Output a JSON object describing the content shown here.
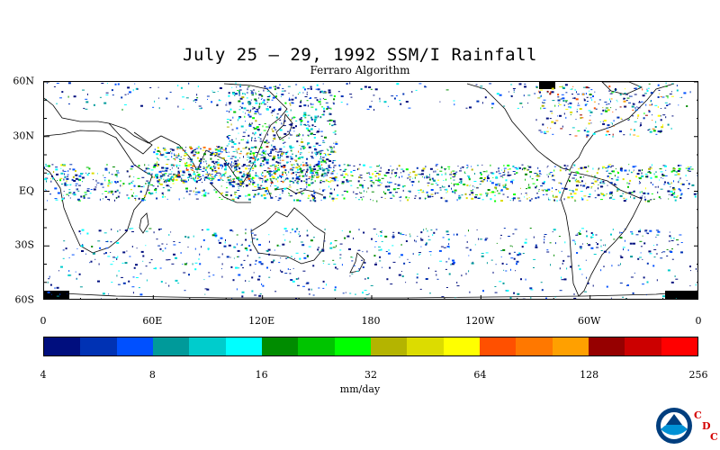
{
  "title": "July 25 – 29, 1992 SSM/I Rainfall",
  "subtitle": "Ferraro Algorithm",
  "map": {
    "lat_labels": [
      {
        "text": "60N",
        "lat": 60
      },
      {
        "text": "30N",
        "lat": 30
      },
      {
        "text": "EQ",
        "lat": 0
      },
      {
        "text": "30S",
        "lat": -30
      },
      {
        "text": "60S",
        "lat": -60
      }
    ],
    "lon_labels": [
      {
        "text": "0",
        "lon": 0
      },
      {
        "text": "60E",
        "lon": 60
      },
      {
        "text": "120E",
        "lon": 120
      },
      {
        "text": "180",
        "lon": 180
      },
      {
        "text": "120W",
        "lon": 240
      },
      {
        "text": "60W",
        "lon": 300
      },
      {
        "text": "0",
        "lon": 360
      }
    ],
    "lon_range": [
      0,
      360
    ],
    "lat_range": [
      -60,
      60
    ]
  },
  "colorbar": {
    "colors": [
      "#000e7e",
      "#0032b4",
      "#0050ff",
      "#009a9a",
      "#00cccc",
      "#00ffff",
      "#008c00",
      "#00c400",
      "#00ff00",
      "#b4b400",
      "#dcdc00",
      "#ffff00",
      "#ff5000",
      "#ff7800",
      "#ffa000",
      "#960000",
      "#cc0000",
      "#ff0000"
    ],
    "labels": [
      "4",
      "8",
      "16",
      "32",
      "64",
      "128",
      "256"
    ],
    "units": "mm/day"
  },
  "logo": {
    "name": "NOAA",
    "cdc": [
      "C",
      "D",
      "C"
    ]
  }
}
